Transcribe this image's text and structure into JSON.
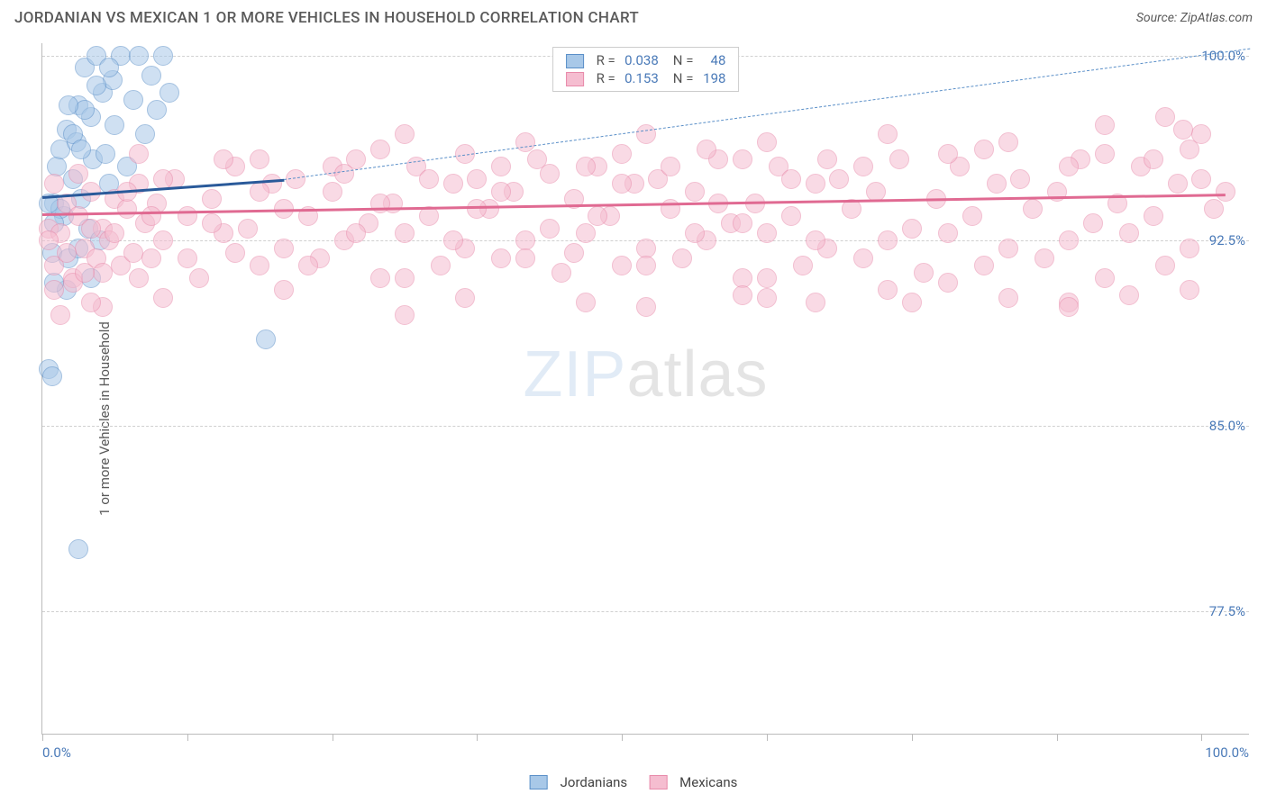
{
  "title": "JORDANIAN VS MEXICAN 1 OR MORE VEHICLES IN HOUSEHOLD CORRELATION CHART",
  "source": "Source: ZipAtlas.com",
  "y_axis_label": "1 or more Vehicles in Household",
  "watermark": {
    "part1": "ZIP",
    "part2": "atlas"
  },
  "chart": {
    "type": "scatter",
    "background_color": "#ffffff",
    "grid_color": "#d0d0d0",
    "axis_color": "#bbbbbb",
    "xlim": [
      0,
      100
    ],
    "ylim": [
      72.5,
      100.5
    ],
    "x_ticks": [
      0,
      12,
      24,
      36,
      48,
      60,
      72,
      84,
      96
    ],
    "y_gridlines": [
      77.5,
      85.0,
      92.5,
      100.0
    ],
    "y_tick_labels": [
      "77.5%",
      "85.0%",
      "92.5%",
      "100.0%"
    ],
    "y_tick_color": "#4a7ab8",
    "x_min_label": "0.0%",
    "x_max_label": "100.0%",
    "x_label_color": "#4a7ab8",
    "marker_radius": 11,
    "marker_opacity": 0.55,
    "series": [
      {
        "name": "Jordanians",
        "fill_color": "#a8c8e8",
        "stroke_color": "#5a8fc8",
        "r_value": "0.038",
        "n_value": "48",
        "trend_solid": {
          "x1": 0,
          "y1": 94.3,
          "x2": 20,
          "y2": 95.0,
          "color": "#2a5a9a",
          "width": 3
        },
        "trend_dashed": {
          "x1": 20,
          "y1": 95.0,
          "x2": 100,
          "y2": 100.3,
          "color": "#5a8fc8",
          "width": 1.5
        },
        "points": [
          [
            0.5,
            87.3
          ],
          [
            0.8,
            92.0
          ],
          [
            1.0,
            94.0
          ],
          [
            1.2,
            95.5
          ],
          [
            1.5,
            96.2
          ],
          [
            1.8,
            93.5
          ],
          [
            2.0,
            97.0
          ],
          [
            2.2,
            91.8
          ],
          [
            2.5,
            95.0
          ],
          [
            2.8,
            96.5
          ],
          [
            3.0,
            98.0
          ],
          [
            3.2,
            94.2
          ],
          [
            3.5,
            99.5
          ],
          [
            3.8,
            93.0
          ],
          [
            4.0,
            97.5
          ],
          [
            4.2,
            95.8
          ],
          [
            4.5,
            100.0
          ],
          [
            4.8,
            92.5
          ],
          [
            5.0,
            98.5
          ],
          [
            5.2,
            96.0
          ],
          [
            5.5,
            94.8
          ],
          [
            5.8,
            99.0
          ],
          [
            6.0,
            97.2
          ],
          [
            6.5,
            100.0
          ],
          [
            7.0,
            95.5
          ],
          [
            7.5,
            98.2
          ],
          [
            8.0,
            100.0
          ],
          [
            8.5,
            96.8
          ],
          [
            9.0,
            99.2
          ],
          [
            9.5,
            97.8
          ],
          [
            10.0,
            100.0
          ],
          [
            2.0,
            90.5
          ],
          [
            3.0,
            92.2
          ],
          [
            4.0,
            91.0
          ],
          [
            1.5,
            93.8
          ],
          [
            2.5,
            96.8
          ],
          [
            3.5,
            97.8
          ],
          [
            4.5,
            98.8
          ],
          [
            5.5,
            99.5
          ],
          [
            1.0,
            90.8
          ],
          [
            0.5,
            94.0
          ],
          [
            3.0,
            80.0
          ],
          [
            0.8,
            87.0
          ],
          [
            1.0,
            93.2
          ],
          [
            2.2,
            98.0
          ],
          [
            3.2,
            96.2
          ],
          [
            18.5,
            88.5
          ],
          [
            10.5,
            98.5
          ]
        ]
      },
      {
        "name": "Mexicans",
        "fill_color": "#f5bdd0",
        "stroke_color": "#e88aaa",
        "r_value": "0.153",
        "n_value": "198",
        "trend_solid": {
          "x1": 0,
          "y1": 93.6,
          "x2": 98,
          "y2": 94.4,
          "color": "#e06a92",
          "width": 3
        },
        "trend_dashed": null,
        "points": [
          [
            0.5,
            93.0
          ],
          [
            1.0,
            91.5
          ],
          [
            1.5,
            92.8
          ],
          [
            2.0,
            94.0
          ],
          [
            2.5,
            91.0
          ],
          [
            3.0,
            93.5
          ],
          [
            3.5,
            92.2
          ],
          [
            4.0,
            94.5
          ],
          [
            4.5,
            91.8
          ],
          [
            5.0,
            93.0
          ],
          [
            5.5,
            92.5
          ],
          [
            6.0,
            94.2
          ],
          [
            6.5,
            91.5
          ],
          [
            7.0,
            93.8
          ],
          [
            7.5,
            92.0
          ],
          [
            8.0,
            94.8
          ],
          [
            8.5,
            93.2
          ],
          [
            9.0,
            91.8
          ],
          [
            9.5,
            94.0
          ],
          [
            10.0,
            92.5
          ],
          [
            11.0,
            95.0
          ],
          [
            12.0,
            93.5
          ],
          [
            13.0,
            91.0
          ],
          [
            14.0,
            94.2
          ],
          [
            15.0,
            92.8
          ],
          [
            16.0,
            95.5
          ],
          [
            17.0,
            93.0
          ],
          [
            18.0,
            91.5
          ],
          [
            19.0,
            94.8
          ],
          [
            20.0,
            92.2
          ],
          [
            21.0,
            95.0
          ],
          [
            22.0,
            93.5
          ],
          [
            23.0,
            91.8
          ],
          [
            24.0,
            94.5
          ],
          [
            25.0,
            92.5
          ],
          [
            26.0,
            95.8
          ],
          [
            27.0,
            93.2
          ],
          [
            28.0,
            91.0
          ],
          [
            29.0,
            94.0
          ],
          [
            30.0,
            92.8
          ],
          [
            31.0,
            95.5
          ],
          [
            32.0,
            93.5
          ],
          [
            33.0,
            91.5
          ],
          [
            34.0,
            94.8
          ],
          [
            35.0,
            92.2
          ],
          [
            36.0,
            95.0
          ],
          [
            37.0,
            93.8
          ],
          [
            38.0,
            91.8
          ],
          [
            39.0,
            94.5
          ],
          [
            40.0,
            92.5
          ],
          [
            41.0,
            95.8
          ],
          [
            42.0,
            93.0
          ],
          [
            43.0,
            91.2
          ],
          [
            44.0,
            94.2
          ],
          [
            45.0,
            92.8
          ],
          [
            46.0,
            95.5
          ],
          [
            47.0,
            93.5
          ],
          [
            48.0,
            91.5
          ],
          [
            49.0,
            94.8
          ],
          [
            50.0,
            92.2
          ],
          [
            51.0,
            95.0
          ],
          [
            52.0,
            93.8
          ],
          [
            53.0,
            91.8
          ],
          [
            54.0,
            94.5
          ],
          [
            55.0,
            92.5
          ],
          [
            56.0,
            95.8
          ],
          [
            57.0,
            93.2
          ],
          [
            58.0,
            91.0
          ],
          [
            59.0,
            94.0
          ],
          [
            60.0,
            92.8
          ],
          [
            61.0,
            95.5
          ],
          [
            62.0,
            93.5
          ],
          [
            63.0,
            91.5
          ],
          [
            64.0,
            94.8
          ],
          [
            65.0,
            92.2
          ],
          [
            66.0,
            95.0
          ],
          [
            67.0,
            93.8
          ],
          [
            68.0,
            91.8
          ],
          [
            69.0,
            94.5
          ],
          [
            70.0,
            92.5
          ],
          [
            71.0,
            95.8
          ],
          [
            72.0,
            93.0
          ],
          [
            73.0,
            91.2
          ],
          [
            74.0,
            94.2
          ],
          [
            75.0,
            92.8
          ],
          [
            76.0,
            95.5
          ],
          [
            77.0,
            93.5
          ],
          [
            78.0,
            91.5
          ],
          [
            79.0,
            94.8
          ],
          [
            80.0,
            92.2
          ],
          [
            81.0,
            95.0
          ],
          [
            82.0,
            93.8
          ],
          [
            83.0,
            91.8
          ],
          [
            84.0,
            94.5
          ],
          [
            85.0,
            92.5
          ],
          [
            86.0,
            95.8
          ],
          [
            87.0,
            93.2
          ],
          [
            88.0,
            91.0
          ],
          [
            89.0,
            94.0
          ],
          [
            90.0,
            92.8
          ],
          [
            91.0,
            95.5
          ],
          [
            92.0,
            93.5
          ],
          [
            93.0,
            91.5
          ],
          [
            94.0,
            94.8
          ],
          [
            95.0,
            92.2
          ],
          [
            96.0,
            95.0
          ],
          [
            97.0,
            93.8
          ],
          [
            98.0,
            94.5
          ],
          [
            1.0,
            94.8
          ],
          [
            2.0,
            92.0
          ],
          [
            3.0,
            95.2
          ],
          [
            4.0,
            93.0
          ],
          [
            5.0,
            91.2
          ],
          [
            6.0,
            92.8
          ],
          [
            7.0,
            94.5
          ],
          [
            8.0,
            91.0
          ],
          [
            9.0,
            93.5
          ],
          [
            10.0,
            95.0
          ],
          [
            12.0,
            91.8
          ],
          [
            14.0,
            93.2
          ],
          [
            16.0,
            92.0
          ],
          [
            18.0,
            94.5
          ],
          [
            20.0,
            93.8
          ],
          [
            22.0,
            91.5
          ],
          [
            24.0,
            95.5
          ],
          [
            26.0,
            92.8
          ],
          [
            28.0,
            94.0
          ],
          [
            30.0,
            91.0
          ],
          [
            32.0,
            95.0
          ],
          [
            34.0,
            92.5
          ],
          [
            36.0,
            93.8
          ],
          [
            38.0,
            94.5
          ],
          [
            40.0,
            91.8
          ],
          [
            42.0,
            95.2
          ],
          [
            44.0,
            92.0
          ],
          [
            46.0,
            93.5
          ],
          [
            48.0,
            94.8
          ],
          [
            50.0,
            91.5
          ],
          [
            52.0,
            95.5
          ],
          [
            54.0,
            92.8
          ],
          [
            56.0,
            94.0
          ],
          [
            58.0,
            93.2
          ],
          [
            60.0,
            91.0
          ],
          [
            62.0,
            95.0
          ],
          [
            64.0,
            92.5
          ],
          [
            30.0,
            89.5
          ],
          [
            45.0,
            90.0
          ],
          [
            60.0,
            90.2
          ],
          [
            58.0,
            90.3
          ],
          [
            64.0,
            90.0
          ],
          [
            70.0,
            90.5
          ],
          [
            75.0,
            90.8
          ],
          [
            80.0,
            90.2
          ],
          [
            85.0,
            90.0
          ],
          [
            90.0,
            90.3
          ],
          [
            95.0,
            90.5
          ],
          [
            15.0,
            95.8
          ],
          [
            25.0,
            95.2
          ],
          [
            35.0,
            96.0
          ],
          [
            45.0,
            95.5
          ],
          [
            55.0,
            96.2
          ],
          [
            65.0,
            95.8
          ],
          [
            75.0,
            96.0
          ],
          [
            85.0,
            95.5
          ],
          [
            95.0,
            96.2
          ],
          [
            88.0,
            96.0
          ],
          [
            92.0,
            95.8
          ],
          [
            78.0,
            96.2
          ],
          [
            68.0,
            95.5
          ],
          [
            58.0,
            95.8
          ],
          [
            48.0,
            96.0
          ],
          [
            38.0,
            95.5
          ],
          [
            28.0,
            96.2
          ],
          [
            18.0,
            95.8
          ],
          [
            8.0,
            96.0
          ],
          [
            93.0,
            97.5
          ],
          [
            96.0,
            96.8
          ],
          [
            85.0,
            89.8
          ],
          [
            72.0,
            90.0
          ],
          [
            50.0,
            89.8
          ],
          [
            35.0,
            90.2
          ],
          [
            20.0,
            90.5
          ],
          [
            10.0,
            90.2
          ],
          [
            5.0,
            89.8
          ],
          [
            1.0,
            90.5
          ],
          [
            1.5,
            89.5
          ],
          [
            2.5,
            90.8
          ],
          [
            3.5,
            91.2
          ],
          [
            0.5,
            92.5
          ],
          [
            4.0,
            90.0
          ],
          [
            94.5,
            97.0
          ],
          [
            88.0,
            97.2
          ],
          [
            80.0,
            96.5
          ],
          [
            70.0,
            96.8
          ],
          [
            60.0,
            96.5
          ],
          [
            50.0,
            96.8
          ],
          [
            40.0,
            96.5
          ],
          [
            30.0,
            96.8
          ]
        ]
      }
    ]
  },
  "legend_bottom": [
    {
      "label": "Jordanians",
      "fill": "#a8c8e8",
      "stroke": "#5a8fc8"
    },
    {
      "label": "Mexicans",
      "fill": "#f5bdd0",
      "stroke": "#e88aaa"
    }
  ]
}
